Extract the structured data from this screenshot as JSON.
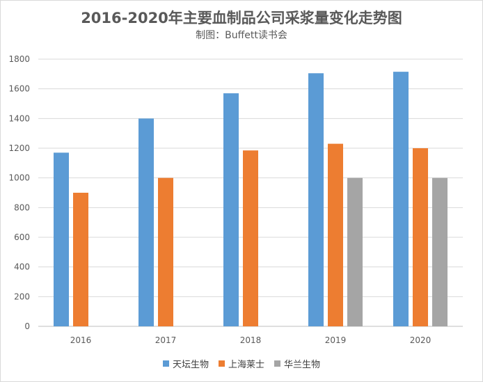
{
  "chart_data": {
    "type": "bar",
    "title": "2016-2020年主要血制品公司采浆量变化走势图",
    "subtitle": "制图：Buffett读书会",
    "categories": [
      "2016",
      "2017",
      "2018",
      "2019",
      "2020"
    ],
    "series": [
      {
        "name": "天坛生物",
        "color": "#5b9bd5",
        "values": [
          1170,
          1400,
          1570,
          1705,
          1715
        ]
      },
      {
        "name": "上海莱士",
        "color": "#ed7d31",
        "values": [
          900,
          1000,
          1185,
          1230,
          1200
        ]
      },
      {
        "name": "华兰生物",
        "color": "#a5a5a5",
        "values": [
          null,
          null,
          null,
          1000,
          1000
        ]
      }
    ],
    "yticks": [
      0,
      200,
      400,
      600,
      800,
      1000,
      1200,
      1400,
      1600,
      1800
    ],
    "ylim": [
      0,
      1800
    ],
    "grid": true,
    "legend_position": "bottom"
  }
}
